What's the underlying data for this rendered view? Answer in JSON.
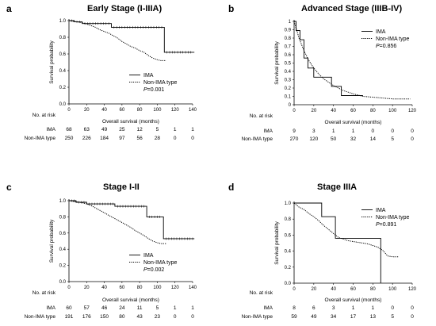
{
  "chart_data": [
    {
      "type": "line",
      "panel_label": "a",
      "title": "Early Stage (I-IIIA)",
      "xlabel": "Overall survival (months)",
      "ylabel": "Survival probability",
      "xlim": [
        0,
        140
      ],
      "ylim": [
        0,
        1.0
      ],
      "xticks": [
        "0",
        "20",
        "40",
        "60",
        "80",
        "100",
        "120",
        "140"
      ],
      "yticks": [
        "0.0",
        "0.2",
        "0.4",
        "0.6",
        "0.8",
        "1.0"
      ],
      "legend": "right-middle",
      "pvalue": "P=0.001",
      "series": [
        {
          "name": "IMA",
          "style": "solid",
          "x": [
            0,
            6,
            6,
            15,
            15,
            48,
            48,
            108,
            108,
            142
          ],
          "y": [
            1.0,
            1.0,
            0.985,
            0.985,
            0.965,
            0.965,
            0.92,
            0.92,
            0.62,
            0.62
          ]
        },
        {
          "name": "Non-IMA type",
          "style": "dotted",
          "x": [
            0,
            5,
            10,
            15,
            20,
            25,
            30,
            35,
            40,
            45,
            50,
            55,
            60,
            65,
            70,
            75,
            80,
            85,
            90,
            95,
            100,
            104,
            110
          ],
          "y": [
            1.0,
            0.99,
            0.985,
            0.975,
            0.96,
            0.94,
            0.92,
            0.89,
            0.87,
            0.85,
            0.82,
            0.79,
            0.75,
            0.72,
            0.69,
            0.67,
            0.64,
            0.62,
            0.58,
            0.55,
            0.53,
            0.52,
            0.52
          ]
        }
      ],
      "risk_table": {
        "header": "No. at risk",
        "rows": [
          {
            "label": "IMA",
            "values": [
              "68",
              "63",
              "49",
              "25",
              "12",
              "5",
              "1",
              "1"
            ]
          },
          {
            "label": "Non-IMA type",
            "values": [
              "250",
              "226",
              "184",
              "97",
              "56",
              "28",
              "0",
              "0"
            ]
          }
        ]
      }
    },
    {
      "type": "line",
      "panel_label": "b",
      "title": "Advanced Stage (IIIB-IV)",
      "xlabel": "Overall survival (months)",
      "ylabel": "Survival probability",
      "xlim": [
        0,
        120
      ],
      "ylim": [
        0,
        1.0
      ],
      "xticks": [
        "0",
        "20",
        "40",
        "60",
        "80",
        "100",
        "120"
      ],
      "yticks": [
        "0",
        "0.1",
        "0.2",
        "0.3",
        "0.4",
        "0.5",
        "0.6",
        "0.7",
        "0.8",
        "0.9",
        "1"
      ],
      "legend": "top-right",
      "pvalue": "P=0.856",
      "series": [
        {
          "name": "IMA",
          "style": "solid",
          "x": [
            0,
            2,
            2,
            6,
            6,
            10,
            10,
            14,
            14,
            20,
            20,
            38,
            38,
            48,
            48,
            65,
            65,
            70
          ],
          "y": [
            1.0,
            1.0,
            0.89,
            0.89,
            0.78,
            0.78,
            0.56,
            0.56,
            0.44,
            0.44,
            0.33,
            0.33,
            0.22,
            0.22,
            0.11,
            0.11,
            0.11,
            0.11
          ]
        },
        {
          "name": "Non-IMA type",
          "style": "dotted",
          "x": [
            0,
            2,
            5,
            10,
            15,
            20,
            25,
            30,
            40,
            50,
            60,
            70,
            80,
            90,
            100,
            110,
            118
          ],
          "y": [
            1.0,
            0.92,
            0.8,
            0.65,
            0.53,
            0.44,
            0.37,
            0.31,
            0.23,
            0.17,
            0.13,
            0.1,
            0.09,
            0.08,
            0.07,
            0.07,
            0.07
          ]
        }
      ],
      "risk_table": {
        "header": "No. at risk",
        "rows": [
          {
            "label": "IMA",
            "values": [
              "9",
              "3",
              "1",
              "1",
              "0",
              "0",
              "0"
            ]
          },
          {
            "label": "Non-IMA type",
            "values": [
              "270",
              "120",
              "50",
              "32",
              "14",
              "5",
              "0"
            ]
          }
        ]
      }
    },
    {
      "type": "line",
      "panel_label": "c",
      "title": "Stage I-II",
      "xlabel": "Overall survival (months)",
      "ylabel": "Survival probability",
      "xlim": [
        0,
        140
      ],
      "ylim": [
        0,
        1.0
      ],
      "xticks": [
        "0",
        "20",
        "40",
        "60",
        "80",
        "100",
        "120",
        "140"
      ],
      "yticks": [
        "0.0",
        "0.2",
        "0.4",
        "0.6",
        "0.8",
        "1.0"
      ],
      "legend": "right-middle",
      "pvalue": "P=0.002",
      "series": [
        {
          "name": "IMA",
          "style": "solid",
          "x": [
            0,
            8,
            8,
            20,
            20,
            52,
            52,
            88,
            88,
            107,
            107,
            142
          ],
          "y": [
            1.0,
            1.0,
            0.98,
            0.98,
            0.96,
            0.96,
            0.93,
            0.93,
            0.8,
            0.8,
            0.53,
            0.53
          ]
        },
        {
          "name": "Non-IMA type",
          "style": "dotted",
          "x": [
            0,
            5,
            10,
            15,
            20,
            25,
            30,
            35,
            40,
            45,
            50,
            55,
            60,
            65,
            70,
            75,
            80,
            85,
            90,
            95,
            100,
            104,
            110
          ],
          "y": [
            1.0,
            0.99,
            0.985,
            0.975,
            0.96,
            0.94,
            0.91,
            0.88,
            0.85,
            0.82,
            0.79,
            0.76,
            0.73,
            0.7,
            0.67,
            0.63,
            0.6,
            0.57,
            0.53,
            0.5,
            0.48,
            0.47,
            0.47
          ]
        }
      ],
      "risk_table": {
        "header": "No. at risk",
        "rows": [
          {
            "label": "IMA",
            "values": [
              "60",
              "57",
              "46",
              "24",
              "11",
              "5",
              "1",
              "1"
            ]
          },
          {
            "label": "Non-IMA type",
            "values": [
              "191",
              "176",
              "150",
              "80",
              "43",
              "23",
              "0",
              "0"
            ]
          }
        ]
      }
    },
    {
      "type": "line",
      "panel_label": "d",
      "title": "Stage IIIA",
      "xlabel": "Overall survival (months)",
      "ylabel": "Survival probability",
      "xlim": [
        0,
        120
      ],
      "ylim": [
        0,
        1.0
      ],
      "xticks": [
        "0",
        "20",
        "40",
        "60",
        "80",
        "100",
        "120"
      ],
      "yticks": [
        "0.0",
        "0.2",
        "0.4",
        "0.6",
        "0.8",
        "1.0"
      ],
      "legend": "top-right",
      "pvalue": "P=0.891",
      "series": [
        {
          "name": "IMA",
          "style": "solid",
          "x": [
            0,
            28,
            28,
            42,
            42,
            88,
            88
          ],
          "y": [
            1.0,
            1.0,
            0.83,
            0.83,
            0.56,
            0.56,
            0.0
          ]
        },
        {
          "name": "Non-IMA type",
          "style": "dotted",
          "x": [
            0,
            5,
            10,
            15,
            20,
            25,
            30,
            35,
            40,
            45,
            50,
            55,
            60,
            65,
            70,
            75,
            80,
            85,
            90,
            95,
            100,
            106
          ],
          "y": [
            1.0,
            0.95,
            0.92,
            0.87,
            0.83,
            0.78,
            0.72,
            0.67,
            0.62,
            0.57,
            0.55,
            0.53,
            0.52,
            0.51,
            0.5,
            0.49,
            0.47,
            0.45,
            0.41,
            0.34,
            0.33,
            0.33
          ]
        }
      ],
      "risk_table": {
        "header": "No. at risk",
        "rows": [
          {
            "label": "IMA",
            "values": [
              "8",
              "6",
              "3",
              "1",
              "1",
              "0",
              "0"
            ]
          },
          {
            "label": "Non-IMA type",
            "values": [
              "59",
              "49",
              "34",
              "17",
              "13",
              "5",
              "0"
            ]
          }
        ]
      }
    }
  ]
}
